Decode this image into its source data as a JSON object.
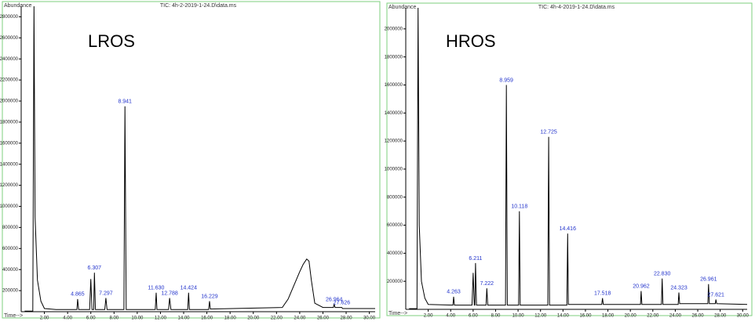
{
  "chart_data": [
    {
      "type": "line",
      "header": "TIC: 4h-2-2019-1-24.D\\data.ms",
      "y_label": "Abundance",
      "x_label": "Time-->",
      "annotation": "LROS",
      "xlim": [
        0,
        30.5
      ],
      "ylim": [
        0,
        2900000
      ],
      "xticks": [
        {
          "value": 2,
          "label": "2.00"
        },
        {
          "value": 4,
          "label": "4.00"
        },
        {
          "value": 6,
          "label": "6.00"
        },
        {
          "value": 8,
          "label": "8.00"
        },
        {
          "value": 10,
          "label": "10.00"
        },
        {
          "value": 12,
          "label": "12.00"
        },
        {
          "value": 14,
          "label": "14.00"
        },
        {
          "value": 16,
          "label": "16.00"
        },
        {
          "value": 18,
          "label": "18.00"
        },
        {
          "value": 20,
          "label": "20.00"
        },
        {
          "value": 22,
          "label": "22.00"
        },
        {
          "value": 24,
          "label": "24.00"
        },
        {
          "value": 26,
          "label": "26.00"
        },
        {
          "value": 28,
          "label": "28.00"
        },
        {
          "value": 30,
          "label": "30.00"
        }
      ],
      "yticks": [
        200000,
        400000,
        600000,
        800000,
        1000000,
        1200000,
        1400000,
        1600000,
        1800000,
        2000000,
        2200000,
        2400000,
        2600000,
        2800000
      ],
      "series": [
        {
          "color": "#000000",
          "x": [
            0.3,
            1.0,
            1.1,
            1.2,
            1.4,
            1.7,
            2.0,
            3.0,
            4.8,
            4.865,
            4.95,
            5.9,
            6.0,
            6.1,
            6.25,
            6.307,
            6.4,
            7.2,
            7.297,
            7.4,
            8.85,
            8.941,
            9.05,
            11.55,
            11.63,
            11.7,
            12.7,
            12.788,
            12.9,
            14.35,
            14.424,
            14.5,
            16.15,
            16.229,
            16.3,
            22.5,
            23.0,
            23.5,
            24.0,
            24.3,
            24.6,
            24.8,
            25.0,
            25.3,
            26.0,
            26.9,
            26.964,
            27.05,
            27.55,
            27.626,
            27.7,
            30.5
          ],
          "values": [
            5000,
            5000,
            2900000,
            900000,
            300000,
            100000,
            30000,
            20000,
            20000,
            120000,
            20000,
            20000,
            310000,
            20000,
            20000,
            370000,
            20000,
            20000,
            130000,
            20000,
            20000,
            1950000,
            20000,
            20000,
            180000,
            20000,
            20000,
            130000,
            20000,
            20000,
            180000,
            20000,
            20000,
            100000,
            25000,
            40000,
            120000,
            250000,
            380000,
            450000,
            500000,
            480000,
            300000,
            80000,
            40000,
            40000,
            70000,
            40000,
            40000,
            40000,
            30000,
            30000
          ]
        }
      ],
      "peak_x": [
        4.865,
        6.307,
        7.297,
        8.941,
        11.63,
        12.788,
        14.424,
        16.229,
        26.964,
        27.626
      ],
      "peak_y": [
        120000,
        370000,
        130000,
        1950000,
        180000,
        130000,
        180000,
        100000,
        70000,
        40000
      ],
      "peak_labels": [
        "4.865",
        "6.307",
        "7.297",
        "8.941",
        "11.630",
        "12.788",
        "14.424",
        "16.229",
        "26.964",
        "27.626"
      ]
    },
    {
      "type": "line",
      "header": "TIC: 4h-4-2019-1-24.D\\data.ms",
      "y_label": "Abundance",
      "x_label": "Time-->",
      "annotation": "HROS",
      "xlim": [
        0,
        30.4
      ],
      "ylim": [
        0,
        2150000
      ],
      "xticks": [
        {
          "value": 2,
          "label": "2.00"
        },
        {
          "value": 4,
          "label": "4.00"
        },
        {
          "value": 6,
          "label": "6.00"
        },
        {
          "value": 8,
          "label": "8.00"
        },
        {
          "value": 10,
          "label": "10.00"
        },
        {
          "value": 12,
          "label": "12.00"
        },
        {
          "value": 14,
          "label": "14.00"
        },
        {
          "value": 16,
          "label": "16.00"
        },
        {
          "value": 18,
          "label": "18.00"
        },
        {
          "value": 20,
          "label": "20.00"
        },
        {
          "value": 22,
          "label": "22.00"
        },
        {
          "value": 24,
          "label": "24.00"
        },
        {
          "value": 26,
          "label": "26.00"
        },
        {
          "value": 28,
          "label": "28.00"
        },
        {
          "value": 30,
          "label": "30.00"
        }
      ],
      "yticks": [
        200000,
        400000,
        600000,
        800000,
        1000000,
        1200000,
        1400000,
        1600000,
        1800000,
        2000000
      ],
      "series": [
        {
          "color": "#000000",
          "x": [
            0.3,
            1.0,
            1.1,
            1.2,
            1.4,
            1.7,
            2.0,
            4.2,
            4.263,
            4.33,
            5.9,
            6.0,
            6.1,
            6.15,
            6.211,
            6.3,
            7.15,
            7.222,
            7.3,
            8.88,
            8.959,
            9.04,
            10.05,
            10.118,
            10.19,
            12.65,
            12.725,
            12.8,
            14.35,
            14.416,
            14.48,
            17.45,
            17.518,
            17.59,
            20.9,
            20.962,
            21.03,
            22.77,
            22.83,
            22.9,
            24.26,
            24.323,
            24.39,
            26.9,
            26.961,
            27.03,
            27.56,
            27.621,
            27.69,
            30.4
          ],
          "values": [
            5000,
            5000,
            2150000,
            600000,
            200000,
            80000,
            35000,
            30000,
            90000,
            30000,
            30000,
            260000,
            30000,
            30000,
            330000,
            30000,
            30000,
            150000,
            30000,
            30000,
            1600000,
            30000,
            30000,
            700000,
            30000,
            30000,
            1230000,
            30000,
            30000,
            540000,
            35000,
            35000,
            80000,
            35000,
            35000,
            130000,
            35000,
            35000,
            220000,
            35000,
            35000,
            120000,
            40000,
            40000,
            180000,
            40000,
            40000,
            70000,
            40000,
            35000
          ]
        }
      ],
      "peak_x": [
        4.263,
        6.211,
        7.222,
        8.959,
        10.118,
        12.725,
        14.416,
        17.518,
        20.962,
        22.83,
        24.323,
        26.961,
        27.621
      ],
      "peak_y": [
        90000,
        330000,
        150000,
        1600000,
        700000,
        1230000,
        540000,
        80000,
        130000,
        220000,
        120000,
        180000,
        70000
      ],
      "peak_labels": [
        "4.263",
        "6.211",
        "7.222",
        "8.959",
        "10.118",
        "12.725",
        "14.416",
        "17.518",
        "20.962",
        "22.830",
        "24.323",
        "26.961",
        "27.621"
      ]
    }
  ]
}
